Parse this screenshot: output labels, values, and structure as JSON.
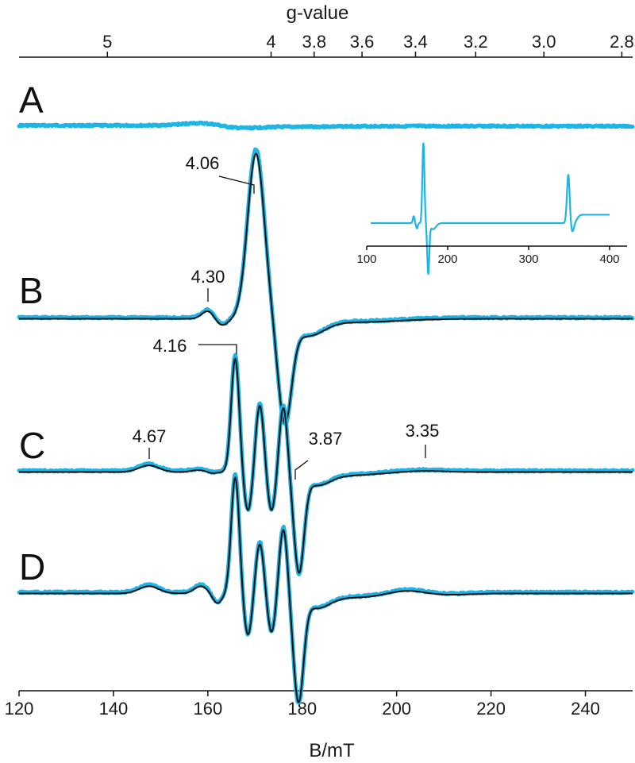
{
  "chart_data": {
    "type": "line",
    "xlabel": "B/mT",
    "top_axis_label": "g-value",
    "xlim": [
      120,
      250
    ],
    "x_ticks": [
      120,
      140,
      160,
      180,
      200,
      220,
      240
    ],
    "g_ticks": [
      {
        "g": 5,
        "label": "5"
      },
      {
        "g": 4,
        "label": "4"
      },
      {
        "g": 3.8,
        "label": "3.8"
      },
      {
        "g": 3.6,
        "label": "3.6"
      },
      {
        "g": 3.4,
        "label": "3.4"
      },
      {
        "g": 3.2,
        "label": "3.2"
      },
      {
        "g": 3.0,
        "label": "3.0"
      },
      {
        "g": 2.8,
        "label": "2.8"
      }
    ],
    "g_conversion_constant": 693.6,
    "colors": {
      "experimental": "#1eb4e6",
      "simulation": "#111111"
    },
    "spectra": [
      {
        "panel": "A",
        "has_simulation": false,
        "features": [
          {
            "field": 158.5,
            "amplitude": 0.35,
            "width": 5.5
          },
          {
            "field": 166.5,
            "amplitude": -0.22,
            "width": 5
          },
          {
            "field": 175,
            "amplitude": -0.1,
            "width": 14
          }
        ],
        "step": {
          "field": 163,
          "height": -0.1,
          "width": 2
        }
      },
      {
        "panel": "B",
        "has_simulation": true,
        "features": [
          {
            "field": 160,
            "amplitude": 0.6,
            "width": 1.8
          },
          {
            "field": 163,
            "amplitude": -0.5,
            "width": 1.8
          },
          {
            "field": 170.2,
            "amplitude": 12.5,
            "width": 2.5
          },
          {
            "field": 176.3,
            "amplitude": -7.4,
            "width": 2.0
          },
          {
            "field": 181,
            "amplitude": -1.2,
            "width": 5
          },
          {
            "field": 192,
            "amplitude": -0.25,
            "width": 12
          }
        ]
      },
      {
        "panel": "C",
        "has_simulation": true,
        "features": [
          {
            "field": 147.5,
            "amplitude": 0.5,
            "width": 3
          },
          {
            "field": 158,
            "amplitude": 0.15,
            "width": 2
          },
          {
            "field": 161,
            "amplitude": -0.1,
            "width": 1.5
          },
          {
            "field": 165.8,
            "amplitude": 8.6,
            "width": 1.2
          },
          {
            "field": 168.5,
            "amplitude": -3.0,
            "width": 1.2
          },
          {
            "field": 171,
            "amplitude": 5.1,
            "width": 1.2
          },
          {
            "field": 173.5,
            "amplitude": -3.0,
            "width": 1.2
          },
          {
            "field": 176,
            "amplitude": 5.0,
            "width": 1.2
          },
          {
            "field": 179.3,
            "amplitude": -7.2,
            "width": 1.5
          },
          {
            "field": 183,
            "amplitude": -0.9,
            "width": 4
          },
          {
            "field": 190,
            "amplitude": -0.25,
            "width": 8
          },
          {
            "field": 206,
            "amplitude": 0.08,
            "width": 6
          }
        ]
      },
      {
        "panel": "D",
        "has_simulation": true,
        "features": [
          {
            "field": 147.5,
            "amplitude": 0.55,
            "width": 3
          },
          {
            "field": 158.5,
            "amplitude": 0.55,
            "width": 2
          },
          {
            "field": 162,
            "amplitude": -0.75,
            "width": 1.4
          },
          {
            "field": 165.8,
            "amplitude": 8.8,
            "width": 1.2
          },
          {
            "field": 168.5,
            "amplitude": -3.2,
            "width": 1.2
          },
          {
            "field": 171,
            "amplitude": 3.8,
            "width": 1.2
          },
          {
            "field": 173.5,
            "amplitude": -3.0,
            "width": 1.2
          },
          {
            "field": 176,
            "amplitude": 5.0,
            "width": 1.2
          },
          {
            "field": 179.2,
            "amplitude": -7.8,
            "width": 1.5
          },
          {
            "field": 183,
            "amplitude": -1.0,
            "width": 4
          },
          {
            "field": 191,
            "amplitude": -0.3,
            "width": 8
          },
          {
            "field": 202,
            "amplitude": 0.25,
            "width": 5
          },
          {
            "field": 211,
            "amplitude": -0.1,
            "width": 6
          }
        ]
      }
    ],
    "annotations": [
      {
        "panel": "B",
        "label": "4.30",
        "field": 161.3,
        "leader": "vertical"
      },
      {
        "panel": "B",
        "label": "4.06",
        "field": 170.8,
        "leader": "diagonal"
      },
      {
        "panel": "C",
        "label": "4.16",
        "field": 166.7,
        "leader": "horizontal"
      },
      {
        "panel": "C",
        "label": "4.67",
        "field": 148.5,
        "leader": "vertical"
      },
      {
        "panel": "C",
        "label": "3.87",
        "field": 179.2,
        "leader": "diagonal"
      },
      {
        "panel": "C",
        "label": "3.35",
        "field": 207,
        "leader": "vertical"
      }
    ],
    "inset": {
      "xlim": [
        100,
        400
      ],
      "x_ticks": [
        100,
        200,
        300,
        400
      ],
      "features": [
        {
          "field": 158,
          "amplitude": 0.9,
          "width": 1.5
        },
        {
          "field": 162,
          "amplitude": -0.7,
          "width": 1.5
        },
        {
          "field": 170,
          "amplitude": 10.5,
          "width": 1.8
        },
        {
          "field": 176,
          "amplitude": -6.5,
          "width": 1.8
        },
        {
          "field": 182,
          "amplitude": -0.8,
          "width": 5
        },
        {
          "field": 349,
          "amplitude": 6.4,
          "width": 2.4
        },
        {
          "field": 354,
          "amplitude": -1.3,
          "width": 3
        },
        {
          "field": 358,
          "amplitude": -0.6,
          "width": 4
        }
      ],
      "step": {
        "field": 355,
        "height": 1.1,
        "width": 3
      }
    }
  }
}
